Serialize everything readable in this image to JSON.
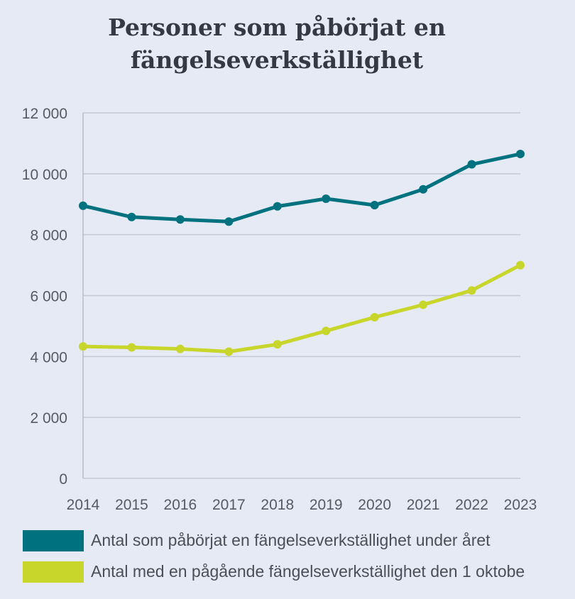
{
  "chart_data": {
    "type": "line",
    "title": [
      "Personer som påbörjat en",
      "fängelseverkställighet"
    ],
    "x": [
      "2014",
      "2015",
      "2016",
      "2017",
      "2018",
      "2019",
      "2020",
      "2021",
      "2022",
      "2023"
    ],
    "ylim": [
      0,
      12000
    ],
    "yticks": [
      0,
      2000,
      4000,
      6000,
      8000,
      10000,
      12000
    ],
    "ytick_labels": [
      "0",
      "2 000",
      "4 000",
      "6 000",
      "8 000",
      "10 000",
      "12 000"
    ],
    "grid": true,
    "legend_position": "bottom",
    "series": [
      {
        "name": "Antal som påbörjat en fängelseverkställighet under året",
        "color": "#00727f",
        "values": [
          8950,
          8580,
          8500,
          8430,
          8930,
          9180,
          8970,
          9490,
          10310,
          10650
        ]
      },
      {
        "name": "Antal med en pågående fängelseverkställighet den 1 oktobe",
        "color": "#c8d62c",
        "values": [
          4330,
          4300,
          4250,
          4160,
          4400,
          4840,
          5290,
          5700,
          6170,
          7000
        ]
      }
    ]
  }
}
